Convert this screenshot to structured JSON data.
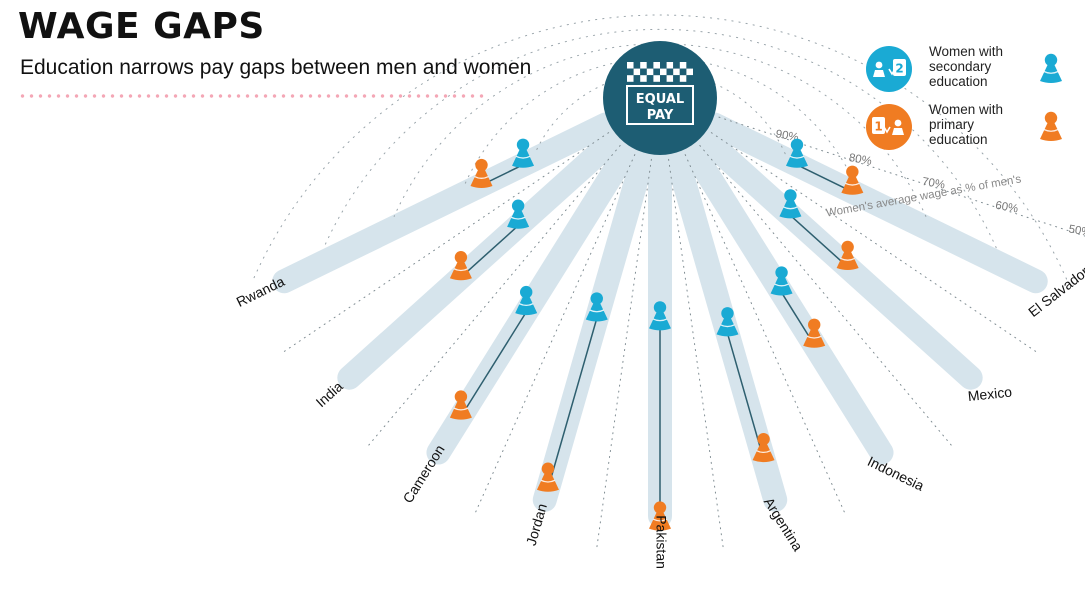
{
  "header": {
    "title": "WAGE GAPS",
    "subtitle": "Education narrows pay gaps between men and women"
  },
  "badge": {
    "line1": "EQUAL",
    "line2": "PAY"
  },
  "legend": [
    {
      "label": "Women with\nsecondary\neducation",
      "icon": "secondary-education-icon",
      "badge_text": "2",
      "color": "#1aaad4"
    },
    {
      "label": "Women with\nprimary\neducation",
      "icon": "primary-education-icon",
      "badge_text": "1",
      "color": "#f07c22"
    }
  ],
  "colors": {
    "secondary": "#1aaad4",
    "primary": "#f07c22",
    "beam": "#d6e4ec",
    "badge": "#1d5d73",
    "connector": "#2e5f6f"
  },
  "chart_data": {
    "type": "radial-dot-plot",
    "title": "WAGE GAPS",
    "subtitle": "Education narrows pay gaps between men and women",
    "axis_label": "Women's average wage as % of men's",
    "ticks": [
      50,
      60,
      70,
      80,
      90
    ],
    "tick_labels": [
      "50%",
      "60%",
      "70%",
      "80%",
      "90%"
    ],
    "range": [
      50,
      100
    ],
    "categories": [
      "El Salvador",
      "Mexico",
      "Indonesia",
      "Argentina",
      "Pakistan",
      "Jordan",
      "Cameroon",
      "India",
      "Rwanda"
    ],
    "series": [
      {
        "name": "Women with primary education",
        "values": [
          80,
          75,
          70,
          59,
          52,
          55,
          59,
          73,
          82
        ]
      },
      {
        "name": "Women with secondary education",
        "values": [
          88,
          85,
          78,
          76,
          78,
          78,
          75,
          83,
          88
        ]
      }
    ]
  }
}
